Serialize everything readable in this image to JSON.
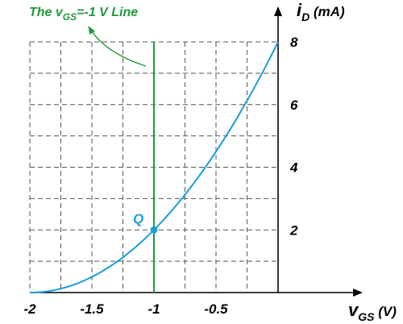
{
  "chart_data": {
    "type": "line",
    "title": "",
    "xlabel": {
      "main": "v",
      "sub": "GS",
      "unit": " (V)"
    },
    "ylabel": {
      "main": "i",
      "sub": "D",
      "unit": " (mA)"
    },
    "x_ticks": [
      "-2",
      "-1.5",
      "-1",
      "-0.5"
    ],
    "x_tick_values": [
      -2,
      -1.5,
      -1,
      -0.5
    ],
    "y_ticks": [
      "2",
      "4",
      "6",
      "8"
    ],
    "y_tick_values": [
      2,
      4,
      6,
      8
    ],
    "xlim": [
      -2,
      0
    ],
    "ylim": [
      0,
      8
    ],
    "grid": true,
    "series": [
      {
        "color": "#1a9fd8",
        "x": [
          -2.0,
          -1.75,
          -1.5,
          -1.25,
          -1.0,
          -0.75,
          -0.5,
          -0.25,
          0.0
        ],
        "y": [
          0.0,
          0.125,
          0.5,
          1.125,
          2.0,
          3.125,
          4.5,
          6.125,
          8.0
        ]
      }
    ],
    "vertical_line": {
      "x": -1,
      "color": "#1f9a3a"
    },
    "annotation": {
      "pre": "The v",
      "sub": "GS",
      "post": "=-1 V Line",
      "color": "#1f9a3a"
    },
    "point": {
      "label": "Q",
      "x": -1,
      "y": 2,
      "color": "#1a9fd8"
    }
  }
}
